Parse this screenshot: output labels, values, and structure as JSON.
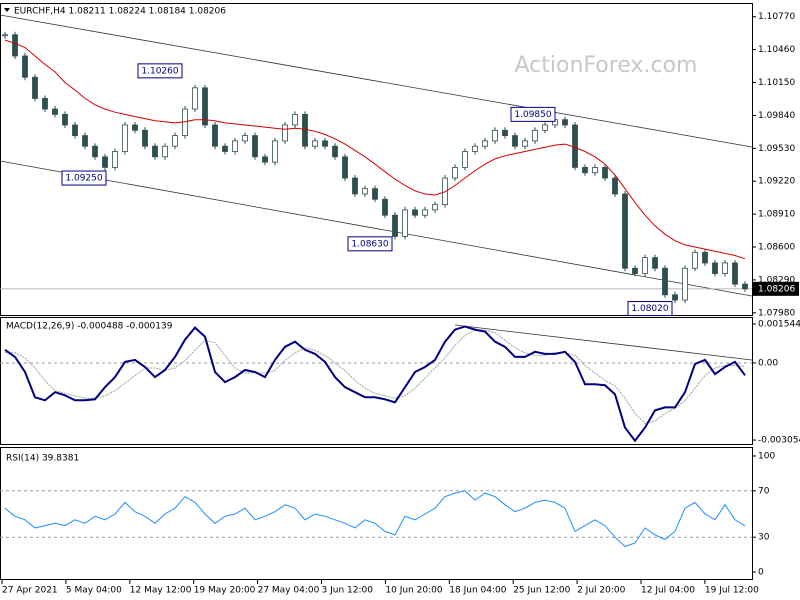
{
  "chart_data": [
    {
      "type": "candlestick",
      "title": "EURCHF,H4  1.08211 1.08224 1.08184 1.08206",
      "watermark": "ActionForex.com",
      "color": "#2f4f4f",
      "values": [
        1.106,
        1.104,
        1.102,
        1.1,
        1.099,
        1.0985,
        1.0975,
        1.0965,
        1.0955,
        1.0945,
        1.0935,
        1.095,
        1.0975,
        1.097,
        1.0955,
        1.0945,
        1.0955,
        1.0965,
        1.099,
        1.101,
        1.0975,
        1.0955,
        1.095,
        1.096,
        1.0965,
        1.0945,
        1.094,
        1.096,
        1.0975,
        1.0985,
        1.0955,
        1.096,
        1.0955,
        1.0945,
        1.0925,
        1.091,
        1.0915,
        1.0905,
        1.089,
        1.087,
        1.0895,
        1.089,
        1.0895,
        1.09,
        1.0925,
        1.0935,
        1.095,
        1.0955,
        1.096,
        1.097,
        1.0965,
        1.0955,
        1.096,
        1.097,
        1.0975,
        1.098,
        1.0975,
        1.0935,
        1.093,
        1.0935,
        1.0925,
        1.091,
        1.084,
        1.0835,
        1.085,
        1.084,
        1.0815,
        1.081,
        1.084,
        1.0855,
        1.0845,
        1.0835,
        1.0845,
        1.0825,
        1.08206
      ],
      "overlays": [
        {
          "color": "#d40000",
          "values": [
            1.1055,
            1.1052,
            1.1048,
            1.104,
            1.1032,
            1.1025,
            1.1015,
            1.1008,
            1.1,
            1.0994,
            1.099,
            1.0987,
            1.0985,
            1.0983,
            1.0981,
            1.0979,
            1.0978,
            1.0977,
            1.0978,
            1.098,
            1.098,
            1.0979,
            1.0977,
            1.0976,
            1.0975,
            1.0974,
            1.0973,
            1.0972,
            1.0971,
            1.0972,
            1.0971,
            1.0969,
            1.0966,
            1.0962,
            1.0957,
            1.0951,
            1.0945,
            1.0938,
            1.0931,
            1.0924,
            1.0918,
            1.0913,
            1.091,
            1.0909,
            1.0912,
            1.0918,
            1.0925,
            1.0932,
            1.0938,
            1.0943,
            1.0946,
            1.0948,
            1.095,
            1.0952,
            1.0954,
            1.0956,
            1.0957,
            1.0954,
            1.095,
            1.0945,
            1.0938,
            1.0928,
            1.0915,
            1.0902,
            1.089,
            1.088,
            1.0872,
            1.0866,
            1.0862,
            1.086,
            1.0858,
            1.0856,
            1.0854,
            1.0852,
            1.0849
          ]
        }
      ],
      "ylim": [
        1.0795,
        1.1089
      ],
      "yticks": [
        {
          "value": 1.1077,
          "label": "1.10770"
        },
        {
          "value": 1.1046,
          "label": "1.10460"
        },
        {
          "value": 1.1015,
          "label": "1.10150"
        },
        {
          "value": 1.0984,
          "label": "1.09840"
        },
        {
          "value": 1.0953,
          "label": "1.09530"
        },
        {
          "value": 1.0922,
          "label": "1.09220"
        },
        {
          "value": 1.0891,
          "label": "1.08910"
        },
        {
          "value": 1.086,
          "label": "1.08600"
        },
        {
          "value": 1.0829,
          "label": "1.08290"
        },
        {
          "value": 1.0798,
          "label": "1.07980"
        }
      ],
      "last": {
        "value": 1.08206,
        "label": "1.08206"
      },
      "annotations": [
        {
          "value": 1.1026,
          "label": "1.10260"
        },
        {
          "value": 1.0925,
          "label": "1.09250"
        },
        {
          "value": 1.0863,
          "label": "1.08630"
        },
        {
          "value": 1.0985,
          "label": "1.09850"
        },
        {
          "value": 1.0802,
          "label": "1.08020"
        }
      ]
    },
    {
      "type": "line",
      "title": "MACD(12,26,9) -0.000488 -0.000139",
      "series": [
        {
          "color": "#000080",
          "values": [
            0.00052,
            0.00024,
            -0.00036,
            -0.00136,
            -0.00148,
            -0.00116,
            -0.00128,
            -0.00148,
            -0.00148,
            -0.00144,
            -0.00096,
            -0.00056,
            4e-05,
            0.00012,
            -0.00016,
            -0.00056,
            -0.00028,
            0.00024,
            0.00092,
            0.0014,
            0.00104,
            -0.00036,
            -0.00076,
            -0.00056,
            -0.00028,
            -0.00036,
            -0.00056,
            0.00012,
            0.00064,
            0.00084,
            0.00052,
            0.00036,
            4e-05,
            -0.00056,
            -0.00096,
            -0.00116,
            -0.00136,
            -0.00136,
            -0.00144,
            -0.00156,
            -0.00096,
            -0.00036,
            -0.00016,
            0.00012,
            0.00084,
            0.00132,
            0.00144,
            0.00132,
            0.00124,
            0.00084,
            0.00064,
            0.00024,
            0.00024,
            0.00044,
            0.00036,
            0.00036,
            0.00044,
            4e-05,
            -0.00084,
            -0.00084,
            -0.00088,
            -0.00124,
            -0.00256,
            -0.00308,
            -0.00256,
            -0.00188,
            -0.00176,
            -0.00176,
            -0.00116,
            -4e-05,
            0.00012,
            -0.00044,
            -0.00016,
            4e-05,
            -0.000488
          ]
        },
        {
          "color": "#a0a0a0",
          "values": [
            0.0004,
            0.0004,
            0.0002,
            -0.0002,
            -0.0007,
            -0.0011,
            -0.0012,
            -0.0013,
            -0.0014,
            -0.0014,
            -0.0013,
            -0.0011,
            -0.0008,
            -0.0005,
            -0.0002,
            -0.0002,
            -0.0003,
            -0.0002,
            0.0001,
            0.0005,
            0.0009,
            0.0008,
            0.0003,
            -0.0002,
            -0.0004,
            -0.0004,
            -0.0004,
            -0.0003,
            0.0001,
            0.0004,
            0.0006,
            0.0005,
            0.0003,
            0.0,
            -0.0003,
            -0.0007,
            -0.001,
            -0.0012,
            -0.0013,
            -0.0014,
            -0.0013,
            -0.001,
            -0.0006,
            -0.0002,
            0.0002,
            0.0007,
            0.0011,
            0.0013,
            0.0013,
            0.0012,
            0.0009,
            0.0006,
            0.0004,
            0.0003,
            0.0003,
            0.0004,
            0.0004,
            0.0003,
            -0.0001,
            -0.0004,
            -0.0007,
            -0.0009,
            -0.0014,
            -0.002,
            -0.0024,
            -0.0023,
            -0.002,
            -0.0018,
            -0.0015,
            -0.001,
            -0.0005,
            -0.0002,
            -0.0001,
            -0.0001,
            -0.000139
          ]
        }
      ],
      "ylim": [
        -0.00325,
        0.00178
      ],
      "yticks": [
        0.001544,
        {
          "value": 0,
          "label": "0.00"
        },
        -0.003054
      ]
    },
    {
      "type": "line",
      "title": "RSI(14) 39.8381",
      "series": [
        {
          "color": "#1e90ff",
          "values": [
            55,
            48,
            45,
            38,
            40,
            42,
            40,
            45,
            42,
            48,
            45,
            50,
            60,
            52,
            48,
            42,
            50,
            55,
            65,
            60,
            50,
            42,
            48,
            50,
            55,
            45,
            48,
            52,
            58,
            55,
            45,
            50,
            48,
            45,
            42,
            38,
            45,
            42,
            35,
            32,
            48,
            45,
            50,
            55,
            65,
            68,
            70,
            62,
            68,
            65,
            58,
            52,
            55,
            60,
            62,
            60,
            55,
            35,
            40,
            45,
            40,
            30,
            22,
            25,
            38,
            32,
            28,
            35,
            55,
            60,
            50,
            45,
            58,
            45,
            39.8381
          ]
        }
      ],
      "ylim": [
        -6.9,
        106.9
      ],
      "yticks": [
        100,
        70,
        30,
        0
      ],
      "levels": [
        70,
        30
      ]
    }
  ],
  "x_labels": [
    "27 Apr 2021",
    "5 May 04:00",
    "12 May 12:00",
    "19 May 20:00",
    "27 May 04:00",
    "3 Jun 12:00",
    "10 Jun 20:00",
    "18 Jun 04:00",
    "25 Jun 12:00",
    "2 Jul 20:00",
    "12 Jul 04:00",
    "19 Jul 12:00"
  ]
}
